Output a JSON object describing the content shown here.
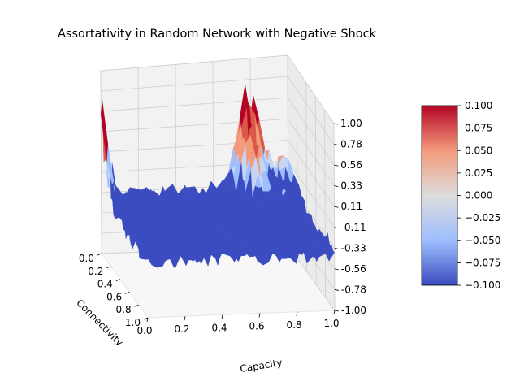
{
  "chart_data": {
    "type": "surface3d",
    "title": "Assortativity in Random  Network with Negative Shock",
    "x_axis": {
      "label": "Capacity",
      "range": [
        0.0,
        1.0
      ],
      "ticks": [
        "0.0",
        "0.2",
        "0.4",
        "0.6",
        "0.8",
        "1.0"
      ]
    },
    "y_axis": {
      "label": "Connectivity",
      "range": [
        0.0,
        1.0
      ],
      "ticks": [
        "0.0",
        "0.2",
        "0.4",
        "0.6",
        "0.8",
        "1.0"
      ]
    },
    "z_axis": {
      "label": "",
      "range": [
        -1.0,
        1.0
      ],
      "ticks": [
        "-1.00",
        "-0.78",
        "-0.56",
        "-0.33",
        "-0.11",
        "0.11",
        "0.33",
        "0.56",
        "0.78",
        "1.00"
      ]
    },
    "colorbar": {
      "colormap": "coolwarm",
      "range": [
        -0.1,
        0.1
      ],
      "ticks": [
        "0.100",
        "0.075",
        "0.050",
        "0.025",
        "0.000",
        "−0.025",
        "−0.050",
        "−0.075",
        "−0.100"
      ],
      "colors": [
        "#b40426",
        "#f49a7b",
        "#dddcdc",
        "#9ebeff",
        "#3b4cc0"
      ]
    },
    "grid": true
  }
}
